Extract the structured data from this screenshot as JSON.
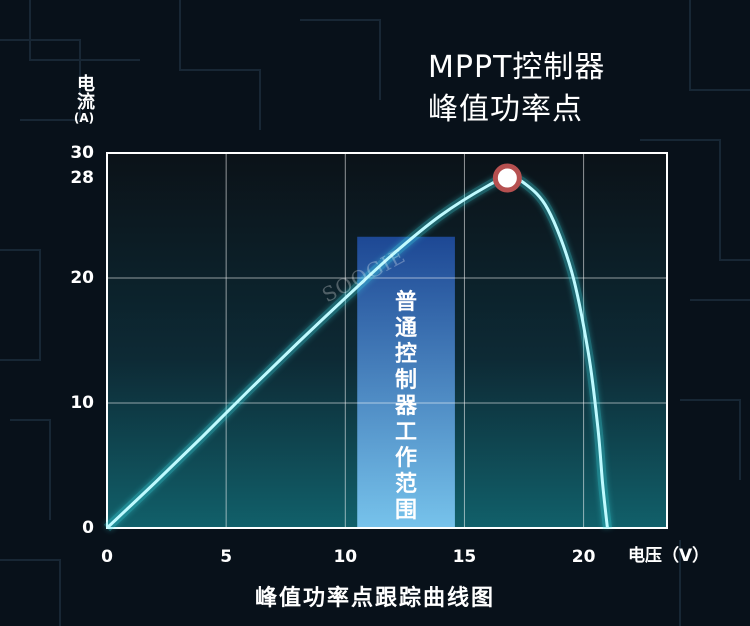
{
  "title_line1": "MPPT控制器",
  "title_line2": "峰值功率点",
  "caption": "峰值功率点跟踪曲线图",
  "band_label": "普通控制器工作范围",
  "watermark": "SOOGIE",
  "colors": {
    "background": "#08111a",
    "curve": "#3fe6ee",
    "peak_marker_ring": "#b65050",
    "band_top": "#1e4a9a",
    "band_bottom": "#7cc8f2",
    "grid": "#ffffff"
  },
  "chart_data": {
    "type": "line",
    "title": "峰值功率点跟踪曲线图",
    "xlabel": "电压（V）",
    "ylabel": "电流",
    "ylabel_unit": "(A)",
    "xlim": [
      0,
      23.5
    ],
    "ylim": [
      0,
      30
    ],
    "x_ticks": [
      0,
      5,
      10,
      15,
      20
    ],
    "y_ticks": [
      0,
      10,
      20,
      28,
      30
    ],
    "grid": true,
    "series": [
      {
        "x": [
          0,
          2,
          4,
          6,
          8,
          10,
          12,
          14,
          16,
          16.8,
          17.5,
          18.5,
          19.5,
          20.2,
          20.6,
          20.8,
          21.0
        ],
        "y": [
          0,
          3.6,
          7.3,
          11.1,
          14.8,
          18.4,
          21.9,
          25.0,
          27.4,
          28,
          27.6,
          25.5,
          20.5,
          14.0,
          8.0,
          3.5,
          0
        ]
      }
    ],
    "peak_point": {
      "x": 16.8,
      "y": 28
    },
    "band": {
      "x_start": 10.5,
      "x_end": 14.6,
      "y_max": 23.3
    }
  }
}
